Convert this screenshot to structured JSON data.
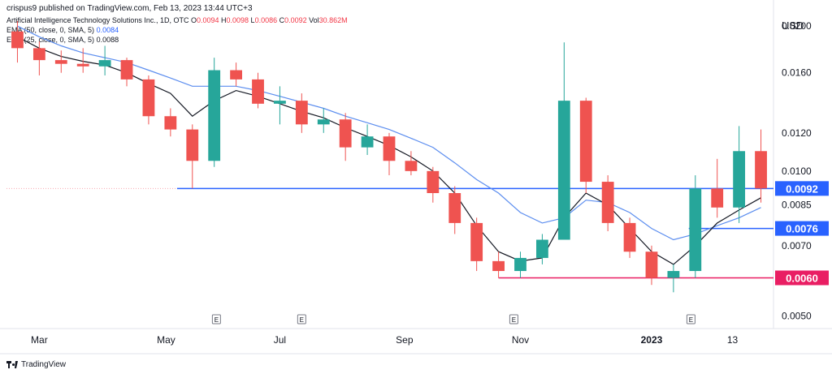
{
  "publisher_line": "crispus9 published on TradingView.com, Feb 13, 2023 13:44 UTC+3",
  "legend": {
    "symbol": "Artificial Intelligence Technology Solutions Inc., 1D, OTC",
    "ohlc": [
      {
        "label": "O",
        "value": "0.0094"
      },
      {
        "label": "H",
        "value": "0.0098"
      },
      {
        "label": "L",
        "value": "0.0086"
      },
      {
        "label": "C",
        "value": "0.0092"
      },
      {
        "label": "Vol",
        "value": "30.862M"
      }
    ],
    "ema50_label": "EMA (50, close, 0, SMA, 5)",
    "ema50_value": "0.0084",
    "ema25_label": "EMA (25, close, 0, SMA, 5)",
    "ema25_value": "0.0088"
  },
  "footer": {
    "brand": "TradingView"
  },
  "colors": {
    "up": "#26a69a",
    "down": "#ef5350",
    "ema50": "#5b8def",
    "ema25": "#131722",
    "hline_blue": "#2962ff",
    "hline_red": "#e91e63"
  },
  "chart_data": {
    "type": "candlestick",
    "currency": "USD",
    "y_scale": "log",
    "ylim": [
      0.0048,
      0.0218
    ],
    "y_ticks": [
      "0.0200",
      "0.0160",
      "0.0120",
      "0.0100",
      "0.0085",
      "0.0070",
      "0.0050"
    ],
    "x_ticks": [
      "Mar",
      "May",
      "Jul",
      "Sep",
      "Nov",
      "2023",
      "13"
    ],
    "x_tick_positions": [
      1.5,
      7.3,
      12.5,
      18.2,
      23.5,
      29.5,
      33.2
    ],
    "earnings_markers": [
      9.6,
      13.5,
      23.2,
      31.3
    ],
    "earnings_label": "E",
    "horizontal_lines": [
      {
        "value": 0.0092,
        "label": "0.0092",
        "color": "blue",
        "from": 7.8
      },
      {
        "value": 0.0076,
        "label": "0.0076",
        "color": "blue",
        "from": 31.2
      },
      {
        "value": 0.006,
        "label": "0.0060",
        "color": "red",
        "from": 22.5
      }
    ],
    "ohlc": [
      {
        "o": 0.0195,
        "h": 0.0205,
        "l": 0.0168,
        "c": 0.018
      },
      {
        "o": 0.018,
        "h": 0.0186,
        "l": 0.0158,
        "c": 0.017
      },
      {
        "o": 0.017,
        "h": 0.0178,
        "l": 0.016,
        "c": 0.0167
      },
      {
        "o": 0.0167,
        "h": 0.018,
        "l": 0.016,
        "c": 0.0165
      },
      {
        "o": 0.0165,
        "h": 0.0182,
        "l": 0.0158,
        "c": 0.017
      },
      {
        "o": 0.017,
        "h": 0.0172,
        "l": 0.015,
        "c": 0.0155
      },
      {
        "o": 0.0155,
        "h": 0.0158,
        "l": 0.0125,
        "c": 0.013
      },
      {
        "o": 0.013,
        "h": 0.0135,
        "l": 0.0118,
        "c": 0.0122
      },
      {
        "o": 0.0122,
        "h": 0.0125,
        "l": 0.0092,
        "c": 0.0105
      },
      {
        "o": 0.0105,
        "h": 0.0172,
        "l": 0.0102,
        "c": 0.0162
      },
      {
        "o": 0.0162,
        "h": 0.0168,
        "l": 0.015,
        "c": 0.0155
      },
      {
        "o": 0.0155,
        "h": 0.016,
        "l": 0.0135,
        "c": 0.0138
      },
      {
        "o": 0.0138,
        "h": 0.015,
        "l": 0.0125,
        "c": 0.014
      },
      {
        "o": 0.014,
        "h": 0.0145,
        "l": 0.012,
        "c": 0.0125
      },
      {
        "o": 0.0125,
        "h": 0.0135,
        "l": 0.012,
        "c": 0.0128
      },
      {
        "o": 0.0128,
        "h": 0.0132,
        "l": 0.0105,
        "c": 0.0112
      },
      {
        "o": 0.0112,
        "h": 0.0125,
        "l": 0.0108,
        "c": 0.0118
      },
      {
        "o": 0.0118,
        "h": 0.012,
        "l": 0.0098,
        "c": 0.0105
      },
      {
        "o": 0.0105,
        "h": 0.011,
        "l": 0.0098,
        "c": 0.01
      },
      {
        "o": 0.01,
        "h": 0.0102,
        "l": 0.0086,
        "c": 0.009
      },
      {
        "o": 0.009,
        "h": 0.0093,
        "l": 0.0074,
        "c": 0.0078
      },
      {
        "o": 0.0078,
        "h": 0.008,
        "l": 0.0062,
        "c": 0.0065
      },
      {
        "o": 0.0065,
        "h": 0.0068,
        "l": 0.006,
        "c": 0.0062
      },
      {
        "o": 0.0062,
        "h": 0.0068,
        "l": 0.006,
        "c": 0.0066
      },
      {
        "o": 0.0066,
        "h": 0.0074,
        "l": 0.0064,
        "c": 0.0072
      },
      {
        "o": 0.0072,
        "h": 0.0185,
        "l": 0.0072,
        "c": 0.014
      },
      {
        "o": 0.014,
        "h": 0.0142,
        "l": 0.009,
        "c": 0.0095
      },
      {
        "o": 0.0095,
        "h": 0.0098,
        "l": 0.0075,
        "c": 0.0078
      },
      {
        "o": 0.0078,
        "h": 0.008,
        "l": 0.0066,
        "c": 0.0068
      },
      {
        "o": 0.0068,
        "h": 0.007,
        "l": 0.0058,
        "c": 0.006
      },
      {
        "o": 0.006,
        "h": 0.0064,
        "l": 0.0056,
        "c": 0.0062
      },
      {
        "o": 0.0062,
        "h": 0.0098,
        "l": 0.006,
        "c": 0.0092
      },
      {
        "o": 0.0092,
        "h": 0.0106,
        "l": 0.008,
        "c": 0.0084
      },
      {
        "o": 0.0084,
        "h": 0.0124,
        "l": 0.0078,
        "c": 0.011
      },
      {
        "o": 0.011,
        "h": 0.0122,
        "l": 0.0086,
        "c": 0.0092
      }
    ],
    "ema50": [
      0.02,
      0.019,
      0.0182,
      0.0176,
      0.0172,
      0.0168,
      0.0162,
      0.0156,
      0.015,
      0.015,
      0.015,
      0.0147,
      0.0143,
      0.0139,
      0.0135,
      0.013,
      0.0126,
      0.0122,
      0.0117,
      0.0112,
      0.0104,
      0.0096,
      0.009,
      0.0082,
      0.0078,
      0.008,
      0.0087,
      0.0086,
      0.0082,
      0.0076,
      0.0072,
      0.0074,
      0.0077,
      0.008,
      0.0084
    ],
    "ema25": [
      0.019,
      0.018,
      0.0173,
      0.0169,
      0.0166,
      0.016,
      0.0152,
      0.0145,
      0.013,
      0.014,
      0.0147,
      0.0143,
      0.0138,
      0.0133,
      0.0129,
      0.0123,
      0.0118,
      0.0113,
      0.0107,
      0.01,
      0.009,
      0.0077,
      0.0068,
      0.0065,
      0.0066,
      0.008,
      0.009,
      0.0085,
      0.0076,
      0.0068,
      0.0064,
      0.007,
      0.0078,
      0.0083,
      0.0088
    ]
  }
}
